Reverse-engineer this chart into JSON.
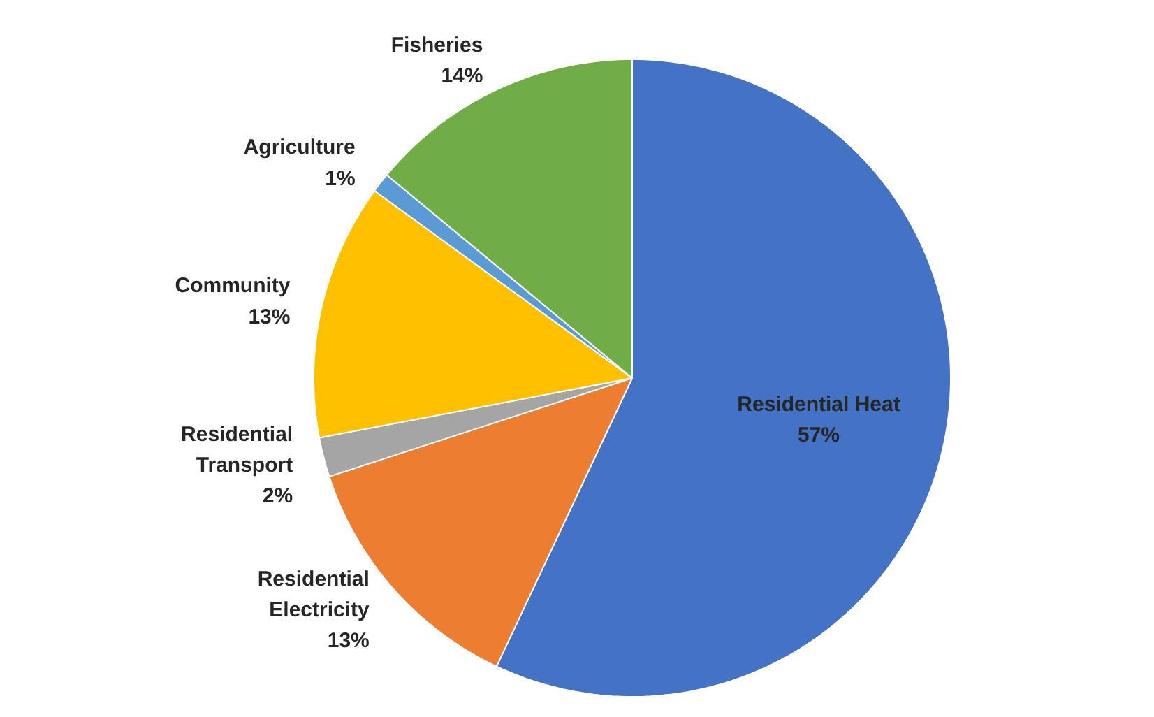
{
  "chart_data": {
    "type": "pie",
    "categories": [
      "Residential Heat",
      "Residential Electricity",
      "Residential Transport",
      "Community",
      "Agriculture",
      "Fisheries"
    ],
    "values": [
      57,
      13,
      2,
      13,
      1,
      14
    ],
    "colors": [
      "#4472c4",
      "#ed7d31",
      "#a5a5a5",
      "#ffc000",
      "#5b9bd5",
      "#70ad47"
    ],
    "value_labels": [
      "57%",
      "13%",
      "2%",
      "13%",
      "1%",
      "14%"
    ],
    "legend": false
  }
}
